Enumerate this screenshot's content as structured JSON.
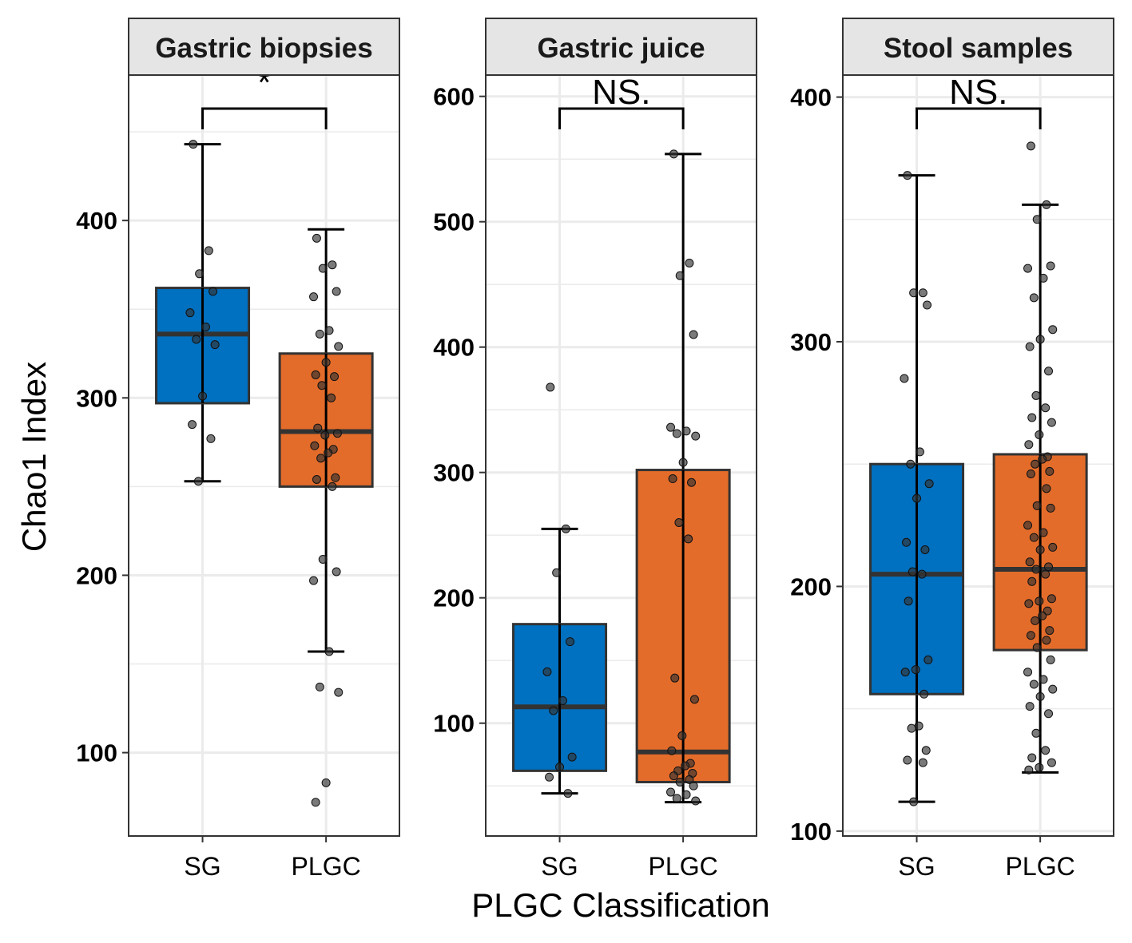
{
  "chart_data": {
    "type": "box",
    "ylabel": "Chao1 Index",
    "xlabel": "PLGC Classification",
    "colors": {
      "SG": "#0070c0",
      "PLGC": "#e46c2a",
      "points": "#333333"
    },
    "panels": [
      {
        "title": "Gastric biopsies",
        "ylim": [
          53,
          482
        ],
        "yticks": [
          100,
          200,
          300,
          400
        ],
        "significance": "*",
        "groups": [
          {
            "name": "SG",
            "whisker_low": 253,
            "q1": 297,
            "median": 336,
            "q3": 362,
            "whisker_high": 443,
            "points": [
              443,
              383,
              370,
              360,
              348,
              340,
              333,
              330,
              301,
              285,
              277,
              253
            ]
          },
          {
            "name": "PLGC",
            "whisker_low": 157,
            "q1": 250,
            "median": 281,
            "q3": 325,
            "whisker_high": 395,
            "points": [
              390,
              375,
              373,
              360,
              357,
              338,
              336,
              329,
              320,
              313,
              312,
              307,
              300,
              283,
              280,
              279,
              273,
              271,
              269,
              266,
              255,
              254,
              250,
              209,
              202,
              197,
              157,
              137,
              134,
              83,
              72
            ]
          }
        ]
      },
      {
        "title": "Gastric juice",
        "ylim": [
          10,
          617
        ],
        "yticks": [
          100,
          200,
          300,
          400,
          500,
          600
        ],
        "significance": "NS.",
        "groups": [
          {
            "name": "SG",
            "whisker_low": 44,
            "q1": 62,
            "median": 113,
            "q3": 179,
            "whisker_high": 255,
            "points": [
              368,
              255,
              220,
              165,
              141,
              118,
              110,
              73,
              65,
              57,
              44
            ]
          },
          {
            "name": "PLGC",
            "whisker_low": 37,
            "q1": 53,
            "median": 77,
            "q3": 302,
            "whisker_high": 554,
            "points": [
              554,
              467,
              457,
              410,
              336,
              333,
              331,
              329,
              308,
              295,
              292,
              260,
              247,
              136,
              119,
              90,
              78,
              68,
              66,
              62,
              60,
              58,
              55,
              53,
              50,
              45,
              43,
              40,
              38
            ]
          }
        ]
      },
      {
        "title": "Stool samples",
        "ylim": [
          98,
          409
        ],
        "yticks": [
          100,
          200,
          300,
          400
        ],
        "significance": "NS.",
        "groups": [
          {
            "name": "SG",
            "whisker_low": 112,
            "q1": 156,
            "median": 205,
            "q3": 250,
            "whisker_high": 368,
            "points": [
              368,
              320,
              320,
              315,
              285,
              255,
              250,
              242,
              236,
              218,
              215,
              206,
              205,
              194,
              170,
              166,
              165,
              156,
              143,
              142,
              133,
              129,
              128,
              112
            ]
          },
          {
            "name": "PLGC",
            "whisker_low": 124,
            "q1": 174,
            "median": 207,
            "q3": 254,
            "whisker_high": 356,
            "points": [
              380,
              356,
              350,
              331,
              330,
              326,
              318,
              305,
              301,
              298,
              288,
              278,
              273,
              269,
              267,
              262,
              258,
              253,
              252,
              250,
              247,
              246,
              240,
              233,
              232,
              225,
              222,
              220,
              216,
              215,
              210,
              208,
              207,
              205,
              202,
              195,
              194,
              193,
              190,
              188,
              186,
              182,
              180,
              178,
              175,
              170,
              165,
              162,
              160,
              158,
              155,
              151,
              148,
              140,
              133,
              130,
              128,
              126,
              125
            ]
          }
        ]
      }
    ]
  }
}
